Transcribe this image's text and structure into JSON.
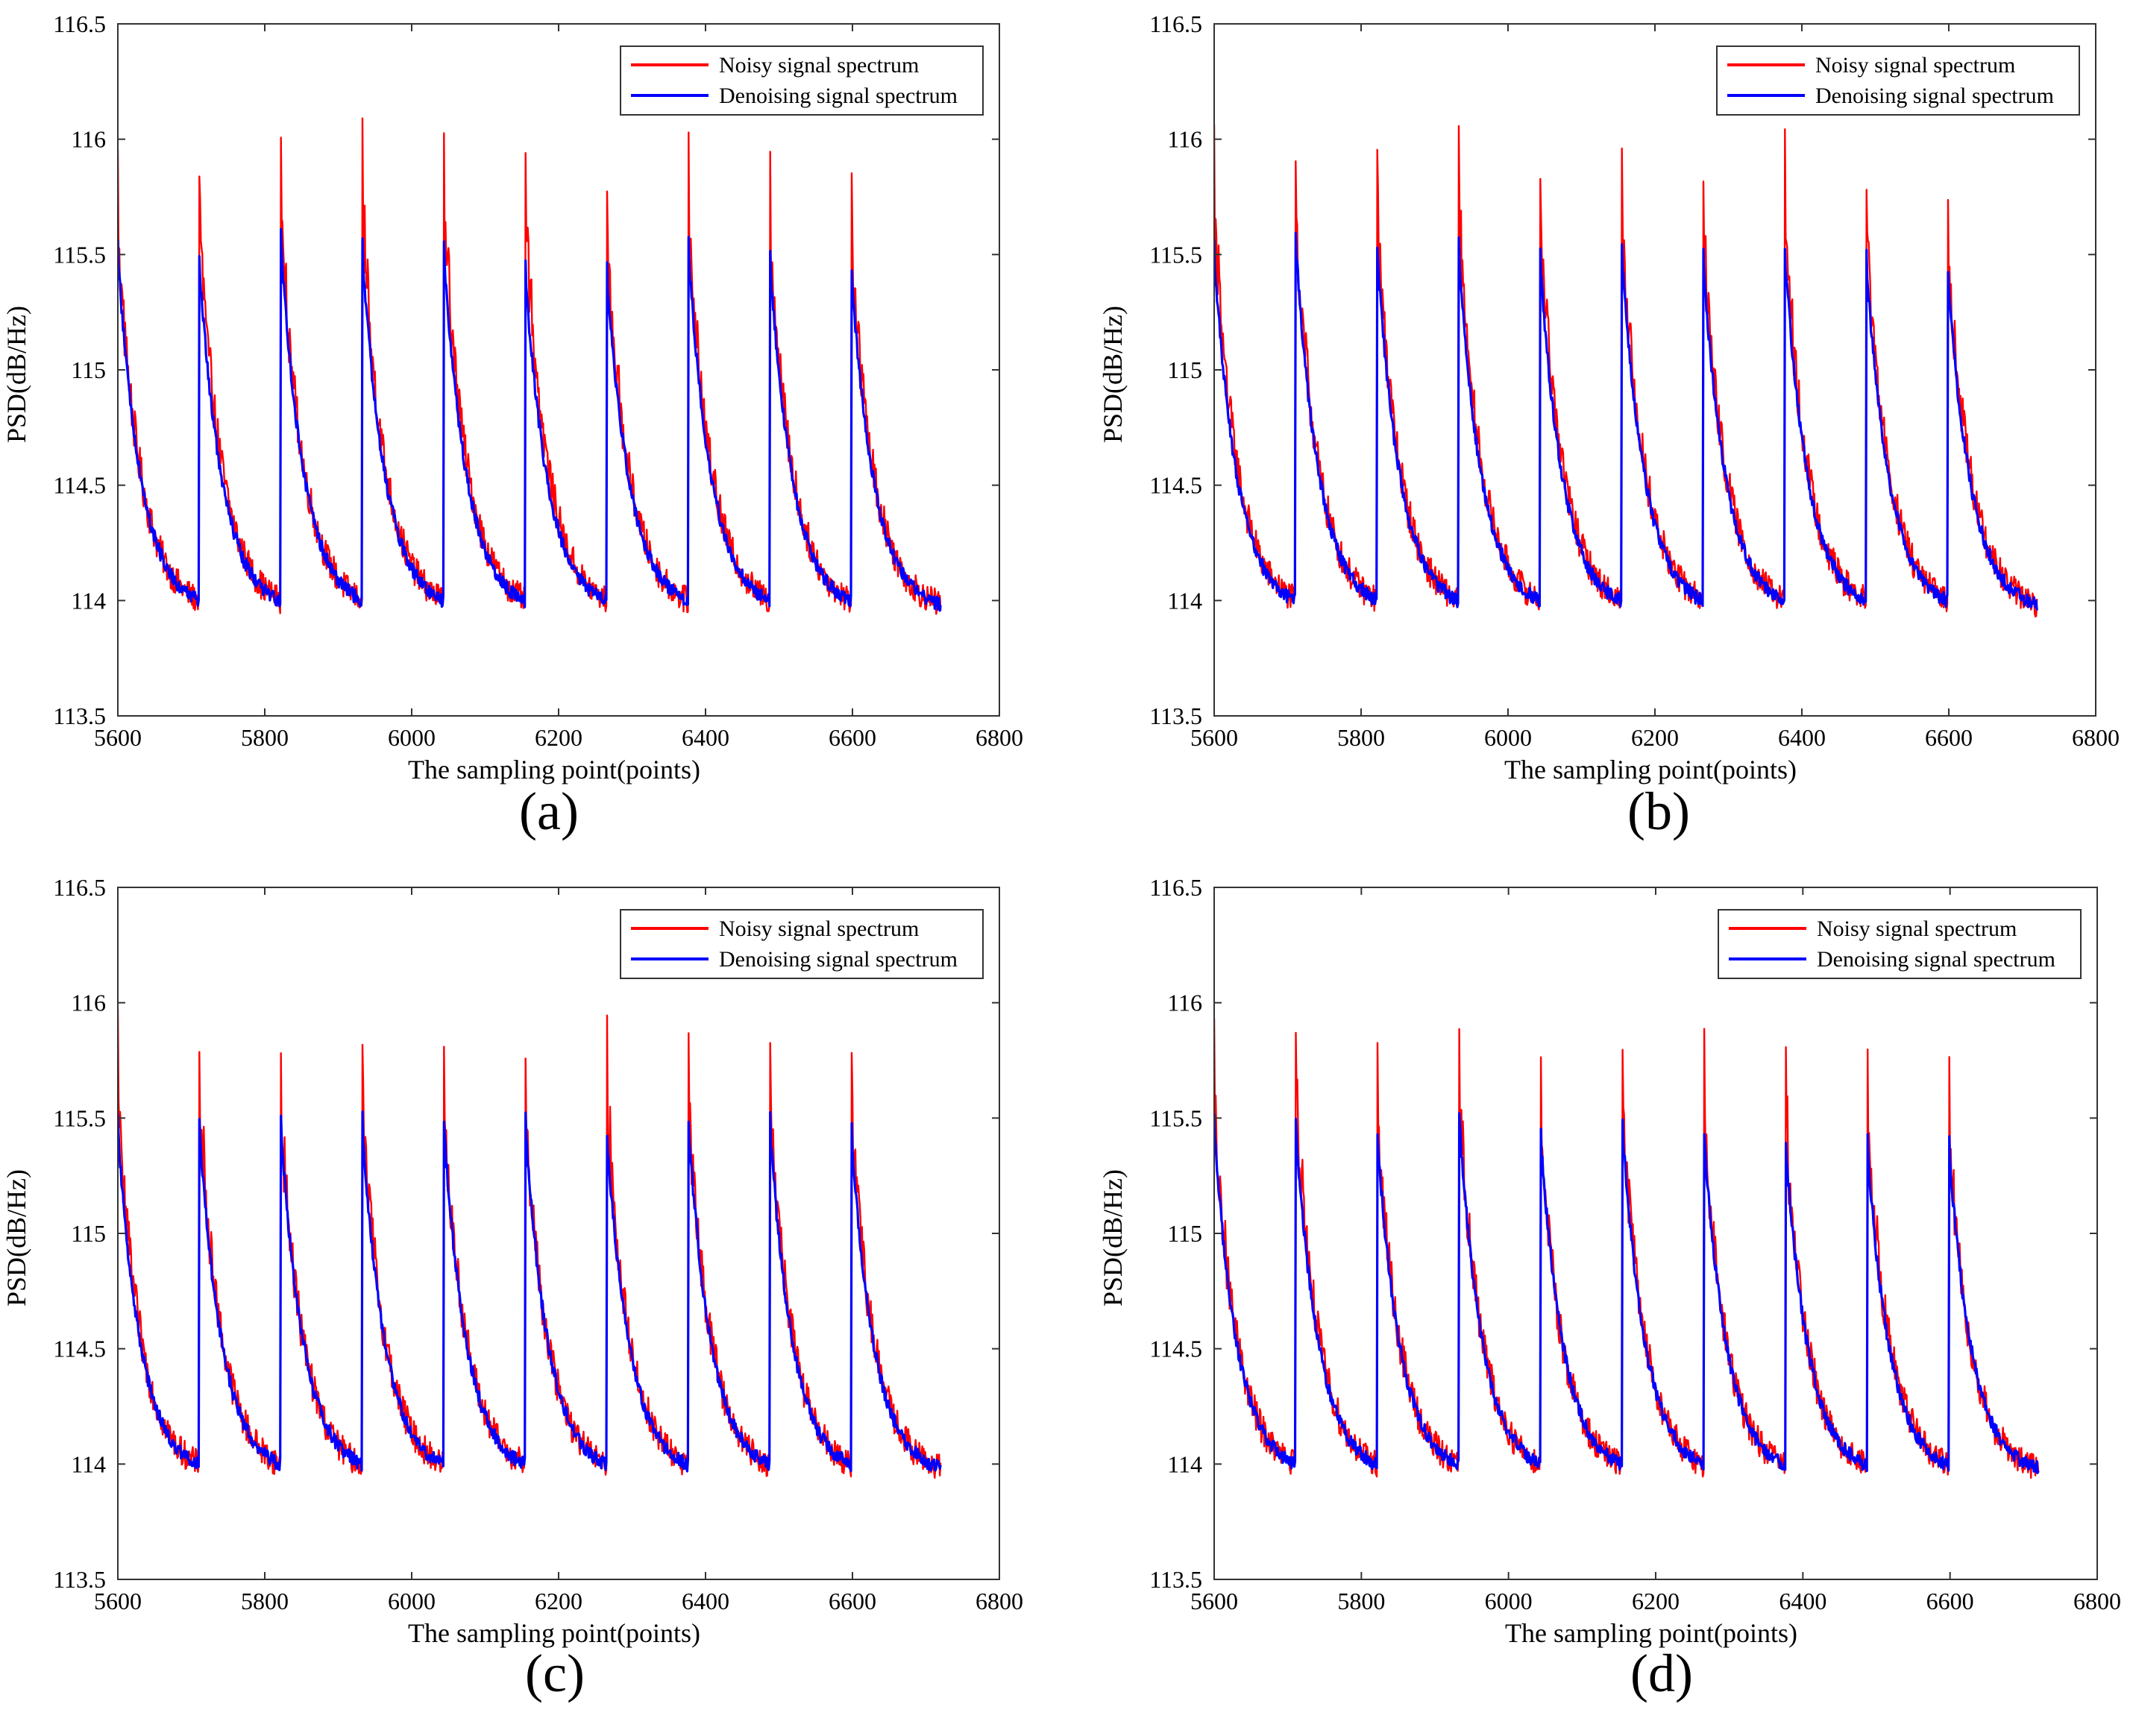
{
  "figure": {
    "legend_entries": [
      {
        "label": "Noisy signal spectrum",
        "color": "#ff0000"
      },
      {
        "label": "Denoising signal spectrum",
        "color": "#0000ff"
      }
    ]
  },
  "chart_data": [
    {
      "panel": "(a)",
      "type": "line",
      "xlabel": "The sampling point(points)",
      "ylabel": "PSD(dB/Hz)",
      "xlim": [
        5600,
        6800
      ],
      "ylim": [
        113.5,
        116.5
      ],
      "xticks": [
        5600,
        5800,
        6000,
        6200,
        6400,
        6600,
        6800
      ],
      "yticks": [
        "113.5",
        "114",
        "114.5",
        "115",
        "115.5",
        "116",
        "116.5"
      ],
      "legend_position": "top-right",
      "cycle": {
        "x_start": 5600,
        "x_end": 6720,
        "period": 111,
        "trough_db": 113.95
      },
      "series": [
        {
          "name": "Noisy signal spectrum",
          "color": "#ff0000",
          "cycle_peaks": [
            115.9,
            115.95,
            115.98,
            115.97,
            116.0,
            115.95,
            115.85,
            115.95,
            115.9,
            115.85
          ],
          "noise_db": 0.09
        },
        {
          "name": "Denoising signal spectrum",
          "color": "#0000ff",
          "cycle_peaks": [
            115.55,
            115.5,
            115.6,
            115.55,
            115.55,
            115.45,
            115.45,
            115.55,
            115.5,
            115.45
          ],
          "noise_db": 0.03
        }
      ]
    },
    {
      "panel": "(b)",
      "type": "line",
      "xlabel": "The sampling point(points)",
      "ylabel": "PSD(dB/Hz)",
      "xlim": [
        5600,
        6800
      ],
      "ylim": [
        113.5,
        116.5
      ],
      "xticks": [
        5600,
        5800,
        6000,
        6200,
        6400,
        6600,
        6800
      ],
      "yticks": [
        "113.5",
        "114",
        "114.5",
        "115",
        "115.5",
        "116",
        "116.5"
      ],
      "legend_position": "top-right",
      "cycle": {
        "x_start": 5600,
        "x_end": 6720,
        "period": 111,
        "trough_db": 113.95
      },
      "series": [
        {
          "name": "Noisy signal spectrum",
          "color": "#ff0000",
          "cycle_peaks": [
            116.0,
            115.98,
            115.95,
            115.97,
            115.95,
            115.97,
            115.9,
            115.95,
            115.9,
            115.85
          ],
          "noise_db": 0.09
        },
        {
          "name": "Denoising signal spectrum",
          "color": "#0000ff",
          "cycle_peaks": [
            115.55,
            115.6,
            115.55,
            115.55,
            115.5,
            115.55,
            115.5,
            115.55,
            115.5,
            115.45
          ],
          "noise_db": 0.03
        }
      ]
    },
    {
      "panel": "(c)",
      "type": "line",
      "xlabel": "The sampling point(points)",
      "ylabel": "PSD(dB/Hz)",
      "xlim": [
        5600,
        6800
      ],
      "ylim": [
        113.5,
        116.5
      ],
      "xticks": [
        5600,
        5800,
        6000,
        6200,
        6400,
        6600,
        6800
      ],
      "yticks": [
        "113.5",
        "114",
        "114.5",
        "115",
        "115.5",
        "116",
        "116.5"
      ],
      "legend_position": "top-right",
      "cycle": {
        "x_start": 5600,
        "x_end": 6720,
        "period": 111,
        "trough_db": 113.95
      },
      "series": [
        {
          "name": "Noisy signal spectrum",
          "color": "#ff0000",
          "cycle_peaks": [
            115.9,
            115.88,
            115.82,
            115.87,
            115.85,
            115.82,
            115.85,
            115.85,
            115.87,
            115.82
          ],
          "noise_db": 0.09
        },
        {
          "name": "Denoising signal spectrum",
          "color": "#0000ff",
          "cycle_peaks": [
            115.5,
            115.5,
            115.5,
            115.5,
            115.5,
            115.5,
            115.45,
            115.5,
            115.5,
            115.45
          ],
          "noise_db": 0.03
        }
      ]
    },
    {
      "panel": "(d)",
      "type": "line",
      "xlabel": "The sampling point(points)",
      "ylabel": "PSD(dB/Hz)",
      "xlim": [
        5600,
        6800
      ],
      "ylim": [
        113.5,
        116.5
      ],
      "xticks": [
        5600,
        5800,
        6000,
        6200,
        6400,
        6600,
        6800
      ],
      "yticks": [
        "113.5",
        "114",
        "114.5",
        "115",
        "115.5",
        "116",
        "116.5"
      ],
      "legend_position": "top-right",
      "cycle": {
        "x_start": 5600,
        "x_end": 6720,
        "period": 111,
        "trough_db": 113.95
      },
      "series": [
        {
          "name": "Noisy signal spectrum",
          "color": "#ff0000",
          "cycle_peaks": [
            115.85,
            115.9,
            115.8,
            115.9,
            115.75,
            115.85,
            115.8,
            115.75,
            115.78,
            115.72
          ],
          "noise_db": 0.09
        },
        {
          "name": "Denoising signal spectrum",
          "color": "#0000ff",
          "cycle_peaks": [
            115.5,
            115.5,
            115.45,
            115.55,
            115.45,
            115.5,
            115.45,
            115.4,
            115.4,
            115.4
          ],
          "noise_db": 0.03
        }
      ]
    }
  ]
}
